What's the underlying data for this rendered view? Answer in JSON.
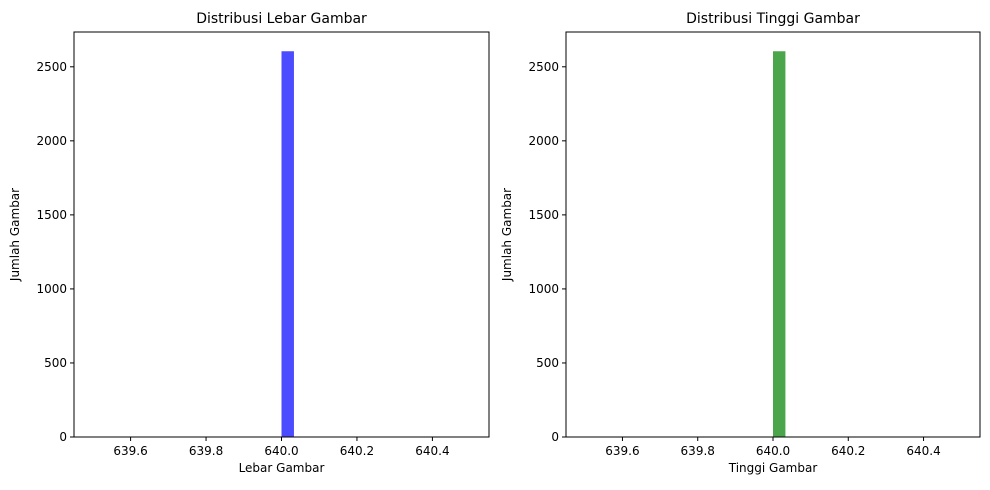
{
  "chart_data": [
    {
      "type": "bar",
      "title": "Distribusi Lebar Gambar",
      "xlabel": "Lebar Gambar",
      "ylabel": "Jumlah Gambar",
      "xlim": [
        639.45,
        640.55
      ],
      "ylim": [
        0,
        2735
      ],
      "xticks": [
        639.6,
        639.8,
        640.0,
        640.2,
        640.4
      ],
      "xtick_labels": [
        "639.6",
        "639.8",
        "640.0",
        "640.2",
        "640.4"
      ],
      "yticks": [
        0,
        500,
        1000,
        1500,
        2000,
        2500
      ],
      "ytick_labels": [
        "0",
        "500",
        "1000",
        "1500",
        "2000",
        "2500"
      ],
      "bins": [
        {
          "x_start": 640.0,
          "x_end": 640.033,
          "value": 2605
        }
      ],
      "color": "#4b4bff",
      "grid": false
    },
    {
      "type": "bar",
      "title": "Distribusi Tinggi Gambar",
      "xlabel": "Tinggi Gambar",
      "ylabel": "Jumlah Gambar",
      "xlim": [
        639.45,
        640.55
      ],
      "ylim": [
        0,
        2735
      ],
      "xticks": [
        639.6,
        639.8,
        640.0,
        640.2,
        640.4
      ],
      "xtick_labels": [
        "639.6",
        "639.8",
        "640.0",
        "640.2",
        "640.4"
      ],
      "yticks": [
        0,
        500,
        1000,
        1500,
        2000,
        2500
      ],
      "ytick_labels": [
        "0",
        "500",
        "1000",
        "1500",
        "2000",
        "2500"
      ],
      "bins": [
        {
          "x_start": 640.0,
          "x_end": 640.033,
          "value": 2605
        }
      ],
      "color": "#4ba64b",
      "grid": false
    }
  ]
}
